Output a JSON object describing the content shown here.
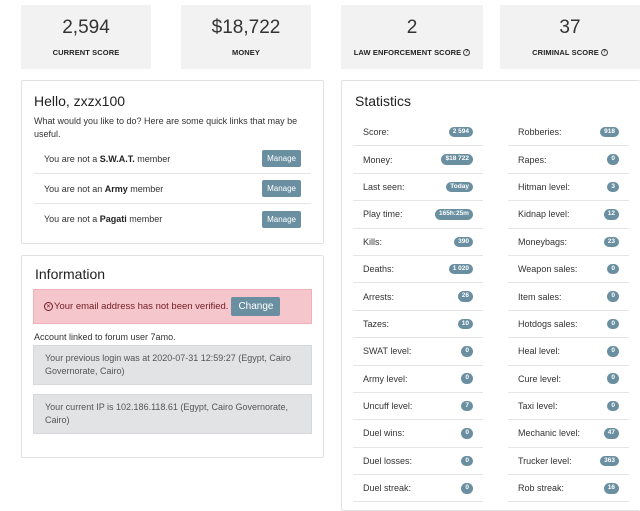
{
  "top_stats": [
    {
      "value": "2,594",
      "label": "CURRENT SCORE",
      "help": false
    },
    {
      "value": "$18,722",
      "label": "MONEY",
      "help": false
    },
    {
      "value": "2",
      "label": "LAW ENFORCEMENT SCORE",
      "help": true
    },
    {
      "value": "37",
      "label": "CRIMINAL SCORE",
      "help": true
    }
  ],
  "hello": {
    "title": "Hello, zxzx100",
    "intro": "What would you like to do? Here are some quick links that may be useful.",
    "rows": [
      {
        "prefix": "You are not a ",
        "name": "S.W.A.T.",
        "suffix": " member",
        "button": "Manage"
      },
      {
        "prefix": "You are not an ",
        "name": "Army",
        "suffix": " member",
        "button": "Manage"
      },
      {
        "prefix": "You are not a ",
        "name": "Pagati",
        "suffix": " member",
        "button": "Manage"
      }
    ]
  },
  "info": {
    "title": "Information",
    "alert_text": "Your email address has not been verified.",
    "alert_button": "Change",
    "linked": "Account linked to forum user 7amo.",
    "last_login": "Your previous login was at 2020-07-31 12:59:27 (Egypt, Cairo Governorate, Cairo)",
    "current_ip": "Your current IP is 102.186.118.61 (Egypt, Cairo Governorate, Cairo)"
  },
  "statistics": {
    "title": "Statistics",
    "left": [
      {
        "label": "Score:",
        "value": "2 594"
      },
      {
        "label": "Money:",
        "value": "$18 722"
      },
      {
        "label": "Last seen:",
        "value": "Today"
      },
      {
        "label": "Play time:",
        "value": "165h:25m"
      },
      {
        "label": "Kills:",
        "value": "390"
      },
      {
        "label": "Deaths:",
        "value": "1 020"
      },
      {
        "label": "Arrests:",
        "value": "26"
      },
      {
        "label": "Tazes:",
        "value": "10"
      },
      {
        "label": "SWAT level:",
        "value": "0"
      },
      {
        "label": "Army level:",
        "value": "0"
      },
      {
        "label": "Uncuff level:",
        "value": "7"
      },
      {
        "label": "Duel wins:",
        "value": "0"
      },
      {
        "label": "Duel losses:",
        "value": "0"
      },
      {
        "label": "Duel streak:",
        "value": "0"
      }
    ],
    "right": [
      {
        "label": "Robberies:",
        "value": "918"
      },
      {
        "label": "Rapes:",
        "value": "0"
      },
      {
        "label": "Hitman level:",
        "value": "3"
      },
      {
        "label": "Kidnap level:",
        "value": "12"
      },
      {
        "label": "Moneybags:",
        "value": "23"
      },
      {
        "label": "Weapon sales:",
        "value": "0"
      },
      {
        "label": "Item sales:",
        "value": "0"
      },
      {
        "label": "Hotdogs sales:",
        "value": "0"
      },
      {
        "label": "Heal level:",
        "value": "0"
      },
      {
        "label": "Cure level:",
        "value": "0"
      },
      {
        "label": "Taxi level:",
        "value": "0"
      },
      {
        "label": "Mechanic level:",
        "value": "47"
      },
      {
        "label": "Trucker level:",
        "value": "363"
      },
      {
        "label": "Rob streak:",
        "value": "16"
      }
    ]
  },
  "colors": {
    "accent": "#6a8fa0",
    "alert_bg": "#f5c6cb",
    "card_bg": "#f2f2f2"
  }
}
